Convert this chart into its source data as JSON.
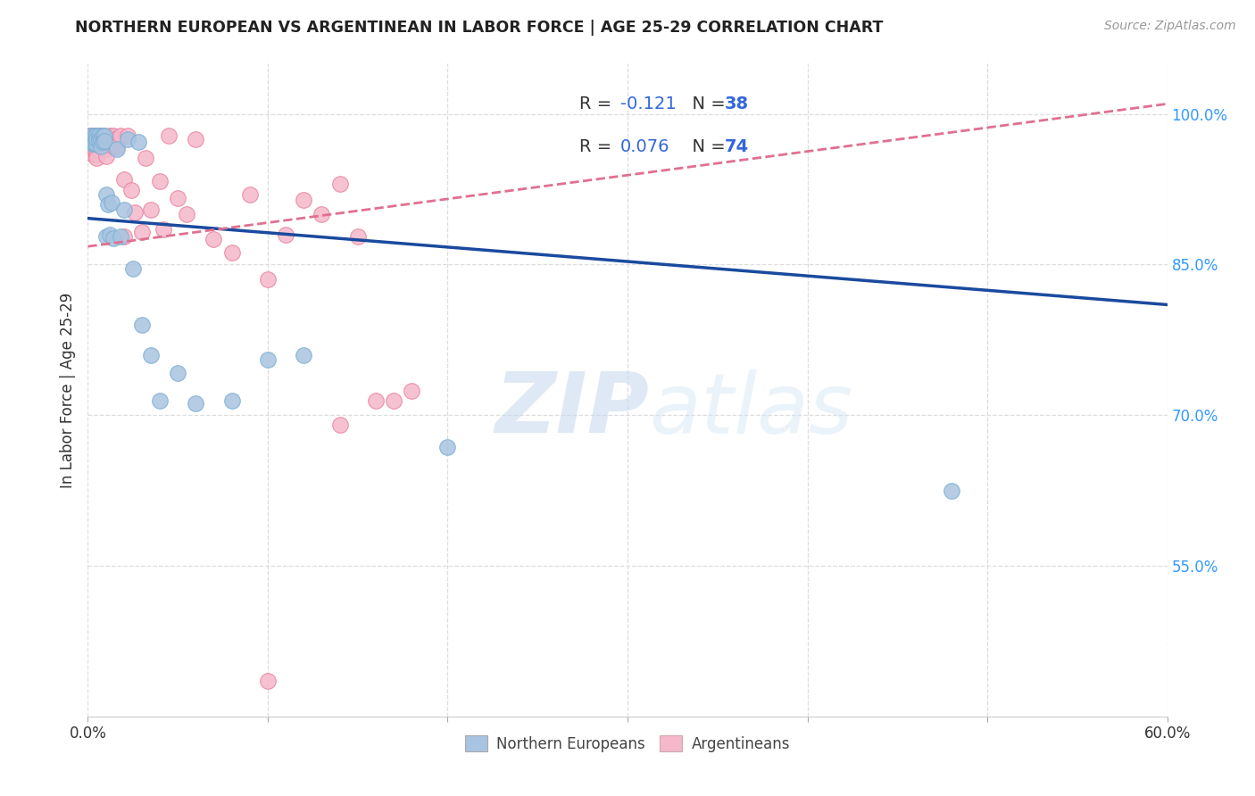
{
  "title": "NORTHERN EUROPEAN VS ARGENTINEAN IN LABOR FORCE | AGE 25-29 CORRELATION CHART",
  "source": "Source: ZipAtlas.com",
  "ylabel": "In Labor Force | Age 25-29",
  "xmin": 0.0,
  "xmax": 0.6,
  "ymin": 0.4,
  "ymax": 1.05,
  "xticks": [
    0.0,
    0.1,
    0.2,
    0.3,
    0.4,
    0.5,
    0.6
  ],
  "xtick_labels": [
    "0.0%",
    "",
    "",
    "",
    "",
    "",
    "60.0%"
  ],
  "yticks_right": [
    0.55,
    0.7,
    0.85,
    1.0
  ],
  "ytick_labels_right": [
    "55.0%",
    "70.0%",
    "85.0%",
    "100.0%"
  ],
  "grid_color": "#dddddd",
  "background_color": "#ffffff",
  "blue_color": "#a8c4e0",
  "blue_edge_color": "#7bafd4",
  "pink_color": "#f5b8cb",
  "pink_edge_color": "#e8829e",
  "blue_line_color": "#1a4a9e",
  "pink_line_color": "#e07090",
  "legend_r_blue": "R = -0.121",
  "legend_n_blue": "N = 38",
  "legend_r_pink": "R = 0.076",
  "legend_n_pink": "N = 74",
  "legend_label_blue": "Northern Europeans",
  "legend_label_pink": "Argentineans",
  "watermark_zip": "ZIP",
  "watermark_atlas": "atlas",
  "blue_trend_x": [
    0.0,
    0.6
  ],
  "blue_trend_y": [
    0.896,
    0.81
  ],
  "pink_trend_x": [
    0.0,
    0.6
  ],
  "pink_trend_y": [
    0.868,
    1.01
  ],
  "blue_points_x": [
    0.002,
    0.003,
    0.003,
    0.004,
    0.004,
    0.005,
    0.005,
    0.005,
    0.006,
    0.006,
    0.007,
    0.007,
    0.008,
    0.008,
    0.009,
    0.009,
    0.01,
    0.01,
    0.011,
    0.012,
    0.013,
    0.014,
    0.016,
    0.018,
    0.02,
    0.022,
    0.025,
    0.028,
    0.03,
    0.035,
    0.04,
    0.05,
    0.06,
    0.08,
    0.1,
    0.12,
    0.2,
    0.48
  ],
  "blue_points_y": [
    0.978,
    0.974,
    0.97,
    0.978,
    0.97,
    0.978,
    0.97,
    0.975,
    0.978,
    0.974,
    0.975,
    0.968,
    0.978,
    0.972,
    0.978,
    0.973,
    0.92,
    0.878,
    0.91,
    0.88,
    0.912,
    0.876,
    0.965,
    0.878,
    0.905,
    0.975,
    0.846,
    0.972,
    0.79,
    0.76,
    0.714,
    0.742,
    0.712,
    0.714,
    0.755,
    0.76,
    0.668,
    0.625
  ],
  "pink_points_x": [
    0.001,
    0.001,
    0.001,
    0.001,
    0.002,
    0.002,
    0.002,
    0.002,
    0.003,
    0.003,
    0.003,
    0.003,
    0.003,
    0.004,
    0.004,
    0.004,
    0.004,
    0.005,
    0.005,
    0.005,
    0.005,
    0.005,
    0.005,
    0.005,
    0.006,
    0.006,
    0.006,
    0.007,
    0.007,
    0.007,
    0.008,
    0.008,
    0.009,
    0.009,
    0.01,
    0.01,
    0.01,
    0.01,
    0.012,
    0.012,
    0.014,
    0.014,
    0.015,
    0.015,
    0.016,
    0.018,
    0.02,
    0.02,
    0.022,
    0.024,
    0.026,
    0.03,
    0.032,
    0.035,
    0.04,
    0.042,
    0.045,
    0.05,
    0.055,
    0.06,
    0.07,
    0.08,
    0.09,
    0.1,
    0.11,
    0.12,
    0.13,
    0.14,
    0.15,
    0.16,
    0.17,
    0.18,
    0.1,
    0.14
  ],
  "pink_points_y": [
    0.978,
    0.974,
    0.97,
    0.966,
    0.978,
    0.974,
    0.97,
    0.966,
    0.978,
    0.974,
    0.97,
    0.966,
    0.96,
    0.978,
    0.974,
    0.97,
    0.965,
    0.978,
    0.975,
    0.972,
    0.968,
    0.965,
    0.96,
    0.956,
    0.978,
    0.974,
    0.97,
    0.978,
    0.974,
    0.968,
    0.978,
    0.972,
    0.978,
    0.973,
    0.975,
    0.97,
    0.965,
    0.958,
    0.978,
    0.97,
    0.978,
    0.968,
    0.975,
    0.97,
    0.968,
    0.978,
    0.935,
    0.878,
    0.978,
    0.924,
    0.902,
    0.882,
    0.956,
    0.905,
    0.933,
    0.885,
    0.978,
    0.916,
    0.9,
    0.975,
    0.875,
    0.862,
    0.92,
    0.835,
    0.88,
    0.914,
    0.9,
    0.93,
    0.878,
    0.714,
    0.714,
    0.724,
    0.435,
    0.69
  ]
}
